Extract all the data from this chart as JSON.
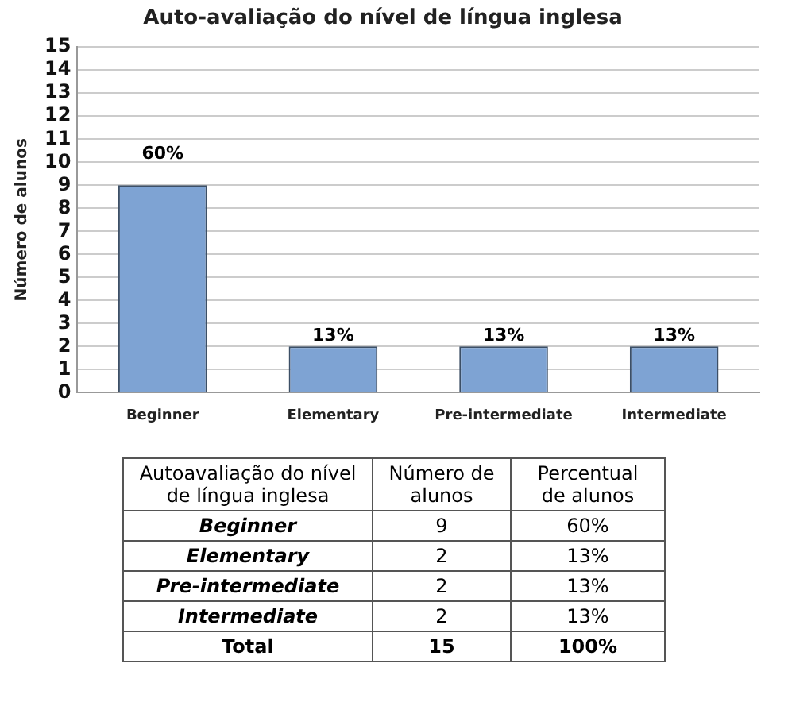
{
  "chart_data": {
    "type": "bar",
    "title": "Auto-avaliação do nível de língua inglesa",
    "ylabel": "Número de alunos",
    "categories": [
      "Beginner",
      "Elementary",
      "Pre-intermediate",
      "Intermediate"
    ],
    "values": [
      9,
      2,
      2,
      2
    ],
    "color": "#7ea3d3",
    "ylim": [
      0,
      15
    ],
    "yticks": [
      0,
      1,
      2,
      3,
      4,
      5,
      6,
      7,
      8,
      9,
      10,
      11,
      12,
      13,
      14,
      15
    ],
    "grid": "y",
    "annotations": [
      {
        "text": "60%",
        "x": "Beginner",
        "y": 9
      },
      {
        "text": "13%",
        "x": "Elementary",
        "y": 2
      },
      {
        "text": "13%",
        "x": "Pre-intermediate",
        "y": 2
      },
      {
        "text": "13%",
        "x": "Intermediate",
        "y": 2
      },
      "Autoavaliação do nível de língua inglesa",
      "Número de alunos",
      "Percentual de alunos",
      "Beginner",
      "9",
      "60%",
      "Elementary",
      "2",
      "13%",
      "Pre-intermediate",
      "2",
      "13%",
      "Intermediate",
      "2",
      "13%",
      "Total",
      "15",
      "100%"
    ]
  }
}
